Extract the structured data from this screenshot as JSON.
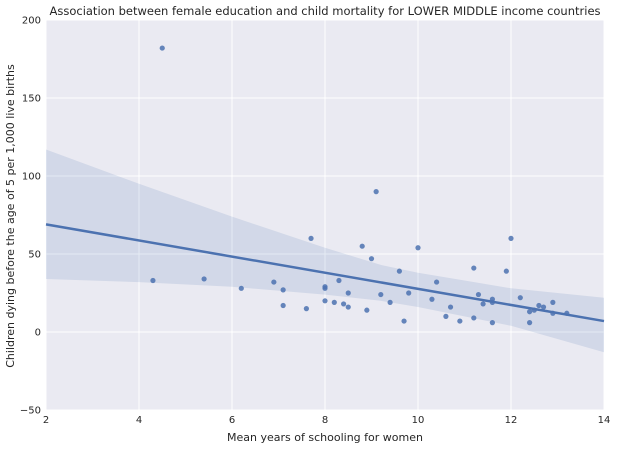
{
  "chart_data": {
    "type": "scatter",
    "title": "Association between female education and child mortality for LOWER MIDDLE income countries",
    "xlabel": "Mean years of schooling for women",
    "ylabel": "Children dying before the age of 5 per 1,000 live births",
    "xlim": [
      2,
      14
    ],
    "ylim": [
      -50,
      200
    ],
    "xticks": [
      2,
      4,
      6,
      8,
      10,
      12,
      14
    ],
    "yticks": [
      -50,
      0,
      50,
      100,
      150,
      200
    ],
    "grid": true,
    "colors": {
      "background": "#eaeaf2",
      "grid": "#ffffff",
      "points": "#4c72b0",
      "line": "#4c72b0",
      "ci_band": "#4c72b0"
    },
    "points": [
      {
        "x": 4.3,
        "y": 33
      },
      {
        "x": 4.5,
        "y": 182
      },
      {
        "x": 5.4,
        "y": 34
      },
      {
        "x": 6.2,
        "y": 28
      },
      {
        "x": 6.9,
        "y": 32
      },
      {
        "x": 7.1,
        "y": 27
      },
      {
        "x": 7.1,
        "y": 17
      },
      {
        "x": 7.6,
        "y": 15
      },
      {
        "x": 7.7,
        "y": 60
      },
      {
        "x": 8.0,
        "y": 29
      },
      {
        "x": 8.0,
        "y": 28
      },
      {
        "x": 8.0,
        "y": 20
      },
      {
        "x": 8.2,
        "y": 19
      },
      {
        "x": 8.3,
        "y": 33
      },
      {
        "x": 8.4,
        "y": 18
      },
      {
        "x": 8.5,
        "y": 25
      },
      {
        "x": 8.5,
        "y": 16
      },
      {
        "x": 8.8,
        "y": 55
      },
      {
        "x": 8.9,
        "y": 14
      },
      {
        "x": 9.0,
        "y": 47
      },
      {
        "x": 9.1,
        "y": 90
      },
      {
        "x": 9.2,
        "y": 24
      },
      {
        "x": 9.4,
        "y": 19
      },
      {
        "x": 9.6,
        "y": 39
      },
      {
        "x": 9.7,
        "y": 7
      },
      {
        "x": 9.8,
        "y": 25
      },
      {
        "x": 10.0,
        "y": 54
      },
      {
        "x": 10.3,
        "y": 21
      },
      {
        "x": 10.4,
        "y": 32
      },
      {
        "x": 10.6,
        "y": 10
      },
      {
        "x": 10.7,
        "y": 16
      },
      {
        "x": 10.9,
        "y": 7
      },
      {
        "x": 11.2,
        "y": 41
      },
      {
        "x": 11.2,
        "y": 9
      },
      {
        "x": 11.3,
        "y": 24
      },
      {
        "x": 11.4,
        "y": 18
      },
      {
        "x": 11.6,
        "y": 21
      },
      {
        "x": 11.6,
        "y": 19
      },
      {
        "x": 11.6,
        "y": 6
      },
      {
        "x": 11.9,
        "y": 39
      },
      {
        "x": 12.0,
        "y": 60
      },
      {
        "x": 12.2,
        "y": 22
      },
      {
        "x": 12.4,
        "y": 13
      },
      {
        "x": 12.4,
        "y": 6
      },
      {
        "x": 12.5,
        "y": 14
      },
      {
        "x": 12.6,
        "y": 17
      },
      {
        "x": 12.7,
        "y": 16
      },
      {
        "x": 12.9,
        "y": 19
      },
      {
        "x": 12.9,
        "y": 12
      },
      {
        "x": 13.2,
        "y": 12
      }
    ],
    "regression_line": {
      "x": [
        2,
        14
      ],
      "y": [
        69,
        7
      ]
    },
    "confidence_band": {
      "x": [
        2,
        4,
        6,
        8,
        9.2,
        10,
        11,
        12,
        13,
        14
      ],
      "upper": [
        117,
        95,
        74,
        54,
        43,
        38,
        33,
        28,
        25,
        22
      ],
      "lower": [
        34,
        32,
        29,
        24,
        20,
        16,
        10,
        4,
        -4.5,
        -13
      ]
    }
  }
}
